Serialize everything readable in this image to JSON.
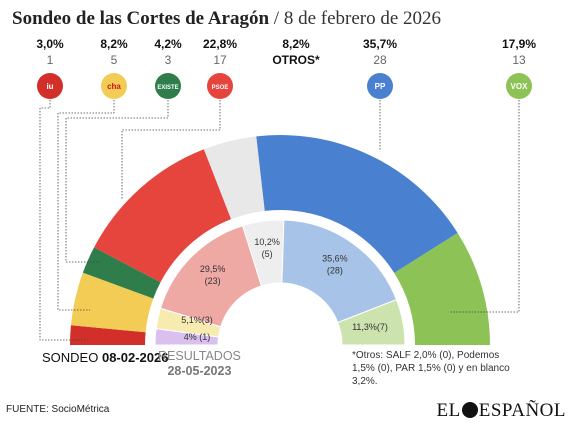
{
  "title": {
    "main": "Sondeo de las Cortes de Aragón",
    "separator": "/",
    "date": "8 de febrero de 2026"
  },
  "parties": [
    {
      "name": "IU",
      "logo_text": "iu",
      "pct": "3,0%",
      "seats": "1",
      "color": "#d22f2a",
      "icon": "iu-logo-icon"
    },
    {
      "name": "CHA",
      "logo_text": "cha",
      "pct": "8,2%",
      "seats": "5",
      "color": "#f2cc55",
      "icon": "cha-logo-icon"
    },
    {
      "name": "Existe",
      "logo_text": "EXISTE",
      "pct": "4,2%",
      "seats": "3",
      "color": "#2e7d4a",
      "icon": "existe-logo-icon"
    },
    {
      "name": "PSOE",
      "logo_text": "PSOE",
      "pct": "22,8%",
      "seats": "17",
      "color": "#e6453d",
      "icon": "psoe-logo-icon"
    },
    {
      "name": "OTROS*",
      "logo_text": "",
      "pct": "8,2%",
      "seats": "OTROS*",
      "color": "#e8e8e8",
      "icon": ""
    },
    {
      "name": "PP",
      "logo_text": "PP",
      "pct": "35,7%",
      "seats": "28",
      "color": "#4a80d0",
      "icon": "pp-logo-icon"
    },
    {
      "name": "VOX",
      "logo_text": "VOX",
      "pct": "17,9%",
      "seats": "13",
      "color": "#8cc256",
      "icon": "vox-logo-icon"
    }
  ],
  "chart_data": [
    {
      "type": "pie",
      "title": "SONDEO 08-02-2026",
      "categories": [
        "IU",
        "CHA",
        "Existe",
        "PSOE",
        "Otros",
        "PP",
        "VOX"
      ],
      "values": [
        1,
        5,
        3,
        17,
        0,
        28,
        13
      ],
      "percent_labels": [
        "3,0%",
        "8,2%",
        "4,2%",
        "22,8%",
        "8,2%",
        "35,7%",
        "17,9%"
      ],
      "visual_share_pct": [
        3.0,
        8.2,
        4.2,
        22.8,
        8.2,
        35.7,
        17.9
      ]
    },
    {
      "type": "pie",
      "title": "RESULTADOS 28-05-2023",
      "categories": [
        "IU",
        "CHA",
        "PSOE",
        "Otros",
        "PP",
        "VOX"
      ],
      "values": [
        1,
        3,
        23,
        5,
        28,
        7
      ],
      "labels": [
        "4% (1)",
        "5,1%(3)",
        "29,5%\n(23)",
        "10,2%\n(5)",
        "35,6%\n(28)",
        "11,3%(7)"
      ],
      "visual_share_pct": [
        4.0,
        5.1,
        29.5,
        10.2,
        35.6,
        11.3
      ]
    }
  ],
  "sondeo_label": {
    "prefix": "SONDEO",
    "date": "08-02-2026"
  },
  "results_label": {
    "line1": "RESULTADOS",
    "line2": "28-05-2023"
  },
  "note": "*Otros: SALF 2,0% (0), Podemos 1,5% (0), PAR 1,5% (0) y en blanco 3,2%.",
  "footer": {
    "source": "FUENTE: SocioMétrica"
  },
  "brand": {
    "left": "EL",
    "right": "ESPAÑOL"
  }
}
